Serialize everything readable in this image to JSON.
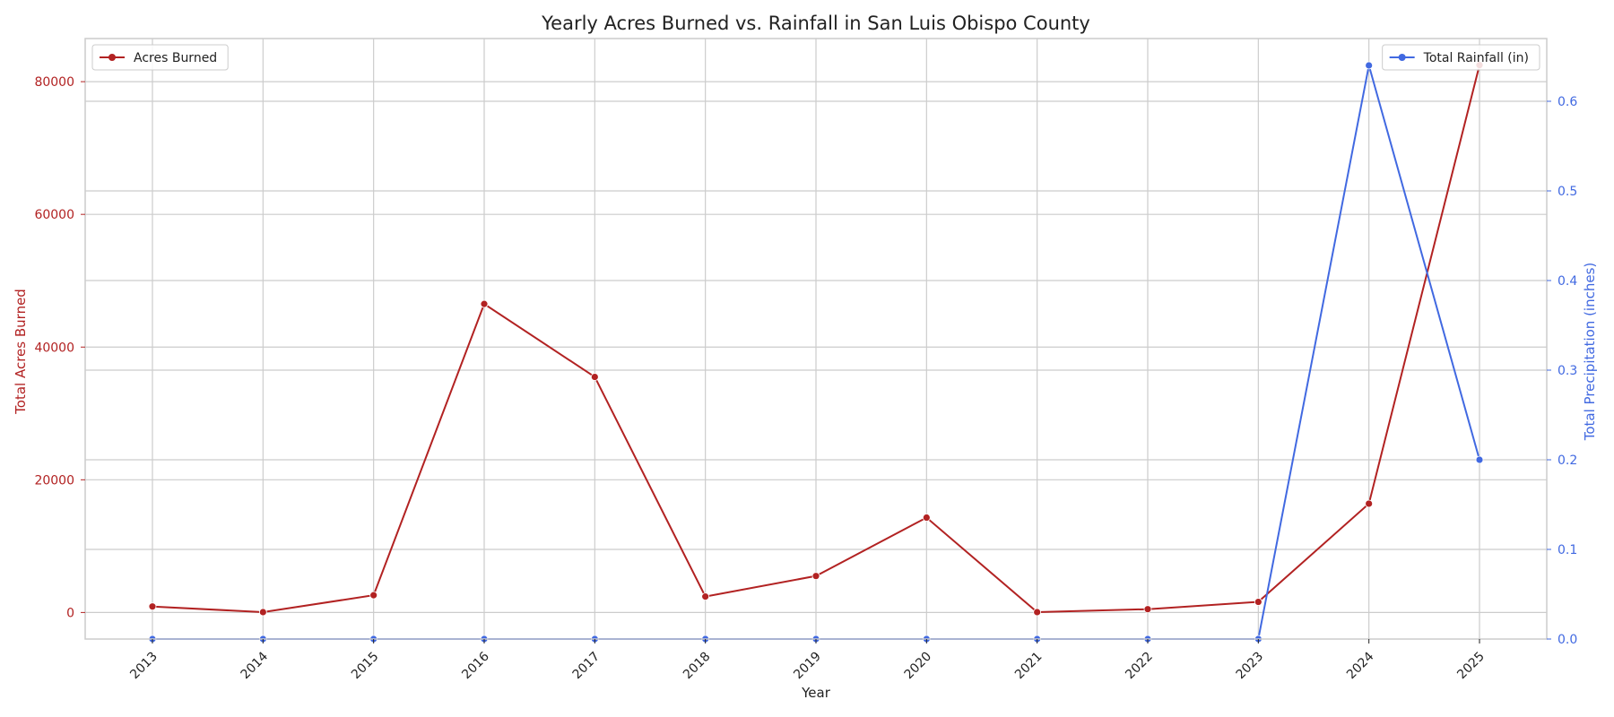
{
  "chart_data": {
    "type": "line",
    "title": "Yearly Acres Burned vs. Rainfall in San Luis Obispo County",
    "xlabel": "Year",
    "ylabel_left": "Total Acres Burned",
    "ylabel_right": "Total Precipitation (inches)",
    "categories": [
      "2013",
      "2014",
      "2015",
      "2016",
      "2017",
      "2018",
      "2019",
      "2020",
      "2021",
      "2022",
      "2023",
      "2024",
      "2025"
    ],
    "left_ylim": [
      -4000,
      86500
    ],
    "left_ticks": [
      0,
      20000,
      40000,
      60000,
      80000
    ],
    "right_ylim": [
      0,
      0.67
    ],
    "right_ticks": [
      0.0,
      0.1,
      0.2,
      0.3,
      0.4,
      0.5,
      0.6
    ],
    "right_tick_labels": [
      "0.0",
      "0.1",
      "0.2",
      "0.3",
      "0.4",
      "0.5",
      "0.6"
    ],
    "grid": true,
    "series": [
      {
        "name": "Acres Burned",
        "axis": "left",
        "color": "#b22222",
        "values": [
          900,
          50,
          2600,
          46500,
          35500,
          2400,
          5500,
          14300,
          50,
          500,
          1600,
          16400,
          82500
        ]
      },
      {
        "name": "Total Rainfall (in)",
        "axis": "right",
        "color": "#4169e1",
        "values": [
          0,
          0,
          0,
          0,
          0,
          0,
          0,
          0,
          0,
          0,
          0,
          0.64,
          0.2
        ]
      }
    ],
    "legends": [
      {
        "series": 0,
        "placement": "top-left"
      },
      {
        "series": 1,
        "placement": "top-right"
      }
    ],
    "colors": {
      "left_axis": "#b22222",
      "right_axis": "#4169e1",
      "grid": "#cccccc",
      "frame": "#cccccc"
    }
  }
}
